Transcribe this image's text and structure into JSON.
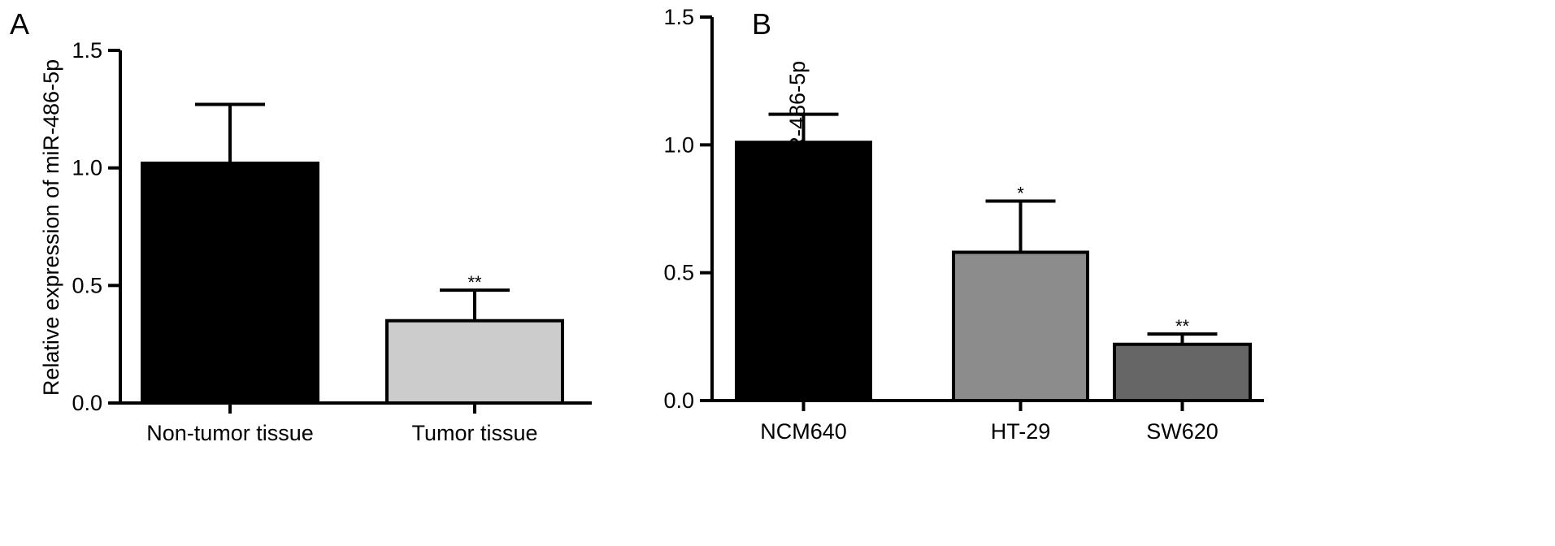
{
  "chart_data": [
    {
      "panel": "A",
      "type": "bar",
      "xlabel": "",
      "ylabel": "Relative expression of miR-486-5p",
      "ylim": [
        0,
        1.5
      ],
      "yticks": [
        "0.0",
        "0.5",
        "1.0",
        "1.5"
      ],
      "categories": [
        "Non-tumor tissue",
        "Tumor tissue"
      ],
      "values": [
        1.02,
        0.35
      ],
      "errors": [
        0.25,
        0.13
      ],
      "significance": [
        "",
        "**"
      ],
      "colors": [
        "#000000",
        "#cccccc"
      ],
      "grid": false,
      "legend": "none"
    },
    {
      "panel": "B",
      "type": "bar",
      "xlabel": "",
      "ylabel": "Relative expression of miR-486-5p",
      "ylim": [
        0,
        1.5
      ],
      "yticks": [
        "0.0",
        "0.5",
        "1.0",
        "1.5"
      ],
      "categories": [
        "NCM640",
        "HT-29",
        "SW620"
      ],
      "values": [
        1.01,
        0.58,
        0.22
      ],
      "errors": [
        0.11,
        0.2,
        0.04
      ],
      "significance": [
        "",
        "*",
        "**"
      ],
      "colors": [
        "#000000",
        "#8c8c8c",
        "#666666"
      ],
      "grid": false,
      "legend": "none"
    }
  ]
}
